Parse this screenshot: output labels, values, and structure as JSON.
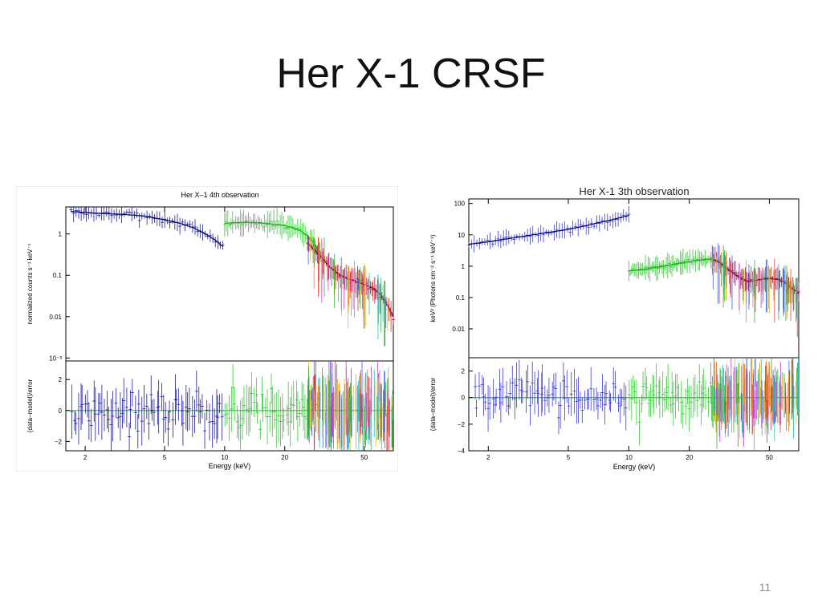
{
  "slide": {
    "title": "Her X-1 CRSF",
    "page_number": "11"
  },
  "chart_data": [
    {
      "type": "scatter",
      "title": "Her X–1 4th observation",
      "xlabel": "Energy (keV)",
      "xscale": "log",
      "xlim": [
        1.6,
        70
      ],
      "xticks": [
        "2",
        "5",
        "10",
        "20",
        "50"
      ],
      "top_panel": {
        "ylabel": "normalized counts s⁻¹ keV⁻¹",
        "yscale": "log",
        "ylim": [
          0.00085,
          4.5
        ],
        "yticks": [
          "1",
          "0.1",
          "0.01",
          "10⁻³"
        ],
        "series": [
          {
            "color": "#1c1c9e",
            "x": [
              1.7,
              2.0,
              2.5,
              3.0,
              4.0,
              5.0,
              6.0,
              7.0,
              8.0,
              9.0,
              9.8
            ],
            "y": [
              3.5,
              3.3,
              3.1,
              3.0,
              2.7,
              2.2,
              1.8,
              1.4,
              1.0,
              0.7,
              0.5
            ]
          },
          {
            "color": "#33cc33",
            "x": [
              10,
              12,
              14,
              16,
              18,
              20,
              22,
              24,
              26,
              28,
              30
            ],
            "y": [
              1.8,
              1.9,
              1.9,
              1.8,
              1.7,
              1.6,
              1.4,
              1.2,
              0.9,
              0.6,
              0.35
            ]
          },
          {
            "color": "#b02030",
            "x": [
              26,
              30,
              34,
              38,
              42,
              46,
              50,
              55,
              60,
              65,
              70
            ],
            "y": [
              0.6,
              0.3,
              0.15,
              0.1,
              0.08,
              0.07,
              0.06,
              0.05,
              0.035,
              0.02,
              0.01
            ]
          }
        ]
      },
      "bottom_panel": {
        "ylabel": "(data−model)/error",
        "ylim": [
          -2.6,
          3.2
        ],
        "yticks": [
          "2",
          "0",
          "−2"
        ]
      }
    },
    {
      "type": "scatter",
      "title": "Her X-1 3th observation",
      "xlabel": "Energy (keV)",
      "xscale": "log",
      "xlim": [
        1.6,
        70
      ],
      "xticks": [
        "2",
        "5",
        "10",
        "20",
        "50"
      ],
      "top_panel": {
        "ylabel": "keV² (Photons cm⁻² s⁻¹ keV⁻¹)",
        "yscale": "log",
        "ylim": [
          0.0012,
          140
        ],
        "yticks": [
          "100",
          "10",
          "1",
          "0.1",
          "0.01"
        ],
        "series": [
          {
            "color": "#3a3ad6",
            "x": [
              1.6,
              2.0,
              3.0,
              4.0,
              5.0,
              6.0,
              7.0,
              8.0,
              9.0,
              10.0
            ],
            "y": [
              5.0,
              6.0,
              9.0,
              12.0,
              15.0,
              19.0,
              24.0,
              29.0,
              35.0,
              42.0
            ]
          },
          {
            "color": "#33cc33",
            "x": [
              10,
              12,
              14,
              16,
              18,
              20,
              22,
              24,
              26
            ],
            "y": [
              0.7,
              0.8,
              0.95,
              1.1,
              1.25,
              1.4,
              1.55,
              1.65,
              1.7
            ]
          },
          {
            "color": "#8a1f50",
            "x": [
              26,
              28,
              30,
              33,
              36,
              40,
              45,
              50,
              55,
              60,
              65,
              70
            ],
            "y": [
              1.6,
              1.4,
              1.0,
              0.6,
              0.4,
              0.32,
              0.38,
              0.42,
              0.38,
              0.3,
              0.2,
              0.13
            ]
          }
        ]
      },
      "bottom_panel": {
        "ylabel": "(data−model)/error",
        "ylim": [
          -4,
          3
        ],
        "yticks": [
          "2",
          "0",
          "−2",
          "−4"
        ]
      }
    }
  ]
}
